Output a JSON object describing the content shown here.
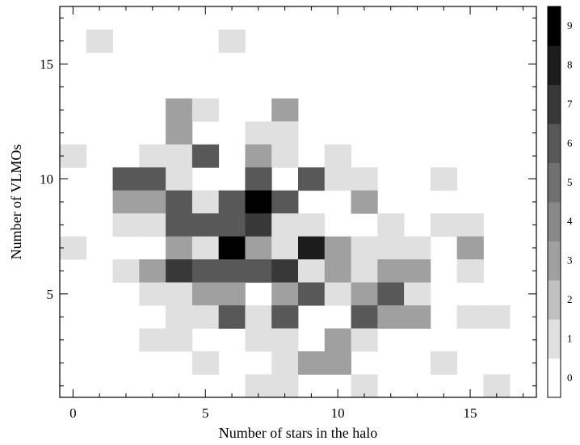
{
  "chart_data": {
    "type": "heatmap",
    "title": "",
    "xlabel": "Number of stars in the halo",
    "ylabel": "Number of VLMOs",
    "xlim": [
      -0.5,
      17.5
    ],
    "ylim": [
      0.5,
      17.5
    ],
    "xticks": [
      0,
      5,
      10,
      15
    ],
    "yticks": [
      5,
      10,
      15
    ],
    "colorbar": {
      "min": 0,
      "max": 10,
      "ticks": [
        0,
        1,
        2,
        3,
        4,
        5,
        6,
        7,
        8,
        9
      ],
      "colors": [
        "#ffffff",
        "#e0e0e0",
        "#c0c0c0",
        "#a0a0a0",
        "#888888",
        "#707070",
        "#585858",
        "#383838",
        "#1c1c1c",
        "#000000"
      ]
    },
    "x": [
      0,
      1,
      2,
      3,
      4,
      5,
      6,
      7,
      8,
      9,
      10,
      11,
      12,
      13,
      14,
      15,
      16,
      17
    ],
    "y": [
      1,
      2,
      3,
      4,
      5,
      6,
      7,
      8,
      9,
      10,
      11,
      12,
      13,
      14,
      15,
      16,
      17
    ],
    "cells": [
      [
        1,
        16,
        1
      ],
      [
        6,
        16,
        1
      ],
      [
        4,
        13,
        3
      ],
      [
        5,
        13,
        1
      ],
      [
        8,
        13,
        3
      ],
      [
        4,
        12,
        3
      ],
      [
        7,
        12,
        1
      ],
      [
        8,
        12,
        1
      ],
      [
        0,
        11,
        1
      ],
      [
        3,
        11,
        1
      ],
      [
        4,
        11,
        1
      ],
      [
        5,
        11,
        6
      ],
      [
        7,
        11,
        3
      ],
      [
        8,
        11,
        1
      ],
      [
        10,
        11,
        1
      ],
      [
        2,
        10,
        6
      ],
      [
        3,
        10,
        6
      ],
      [
        4,
        10,
        1
      ],
      [
        7,
        10,
        6
      ],
      [
        9,
        10,
        6
      ],
      [
        10,
        10,
        1
      ],
      [
        11,
        10,
        1
      ],
      [
        14,
        10,
        1
      ],
      [
        2,
        9,
        3
      ],
      [
        3,
        9,
        3
      ],
      [
        4,
        9,
        6
      ],
      [
        5,
        9,
        1
      ],
      [
        6,
        9,
        6
      ],
      [
        7,
        9,
        9
      ],
      [
        8,
        9,
        6
      ],
      [
        11,
        9,
        3
      ],
      [
        2,
        8,
        1
      ],
      [
        3,
        8,
        1
      ],
      [
        4,
        8,
        6
      ],
      [
        5,
        8,
        6
      ],
      [
        6,
        8,
        6
      ],
      [
        7,
        8,
        7
      ],
      [
        8,
        8,
        1
      ],
      [
        9,
        8,
        1
      ],
      [
        12,
        8,
        1
      ],
      [
        14,
        8,
        1
      ],
      [
        15,
        8,
        1
      ],
      [
        0,
        7,
        1
      ],
      [
        4,
        7,
        3
      ],
      [
        5,
        7,
        1
      ],
      [
        6,
        7,
        9
      ],
      [
        7,
        7,
        3
      ],
      [
        8,
        7,
        1
      ],
      [
        9,
        7,
        8
      ],
      [
        10,
        7,
        3
      ],
      [
        11,
        7,
        1
      ],
      [
        12,
        7,
        1
      ],
      [
        13,
        7,
        1
      ],
      [
        15,
        7,
        3
      ],
      [
        2,
        6,
        1
      ],
      [
        3,
        6,
        3
      ],
      [
        4,
        6,
        7
      ],
      [
        5,
        6,
        6
      ],
      [
        6,
        6,
        6
      ],
      [
        7,
        6,
        6
      ],
      [
        8,
        6,
        7
      ],
      [
        9,
        6,
        1
      ],
      [
        10,
        6,
        3
      ],
      [
        11,
        6,
        1
      ],
      [
        12,
        6,
        3
      ],
      [
        13,
        6,
        3
      ],
      [
        15,
        6,
        1
      ],
      [
        3,
        5,
        1
      ],
      [
        4,
        5,
        1
      ],
      [
        5,
        5,
        3
      ],
      [
        6,
        5,
        3
      ],
      [
        8,
        5,
        3
      ],
      [
        9,
        5,
        6
      ],
      [
        10,
        5,
        1
      ],
      [
        11,
        5,
        3
      ],
      [
        12,
        5,
        6
      ],
      [
        13,
        5,
        1
      ],
      [
        4,
        4,
        1
      ],
      [
        5,
        4,
        1
      ],
      [
        6,
        4,
        6
      ],
      [
        7,
        4,
        1
      ],
      [
        8,
        4,
        6
      ],
      [
        11,
        4,
        6
      ],
      [
        12,
        4,
        3
      ],
      [
        13,
        4,
        3
      ],
      [
        15,
        4,
        1
      ],
      [
        16,
        4,
        1
      ],
      [
        3,
        3,
        1
      ],
      [
        4,
        3,
        1
      ],
      [
        7,
        3,
        1
      ],
      [
        8,
        3,
        1
      ],
      [
        10,
        3,
        3
      ],
      [
        11,
        3,
        1
      ],
      [
        5,
        2,
        1
      ],
      [
        8,
        2,
        1
      ],
      [
        9,
        2,
        3
      ],
      [
        10,
        2,
        3
      ],
      [
        14,
        2,
        1
      ],
      [
        7,
        1,
        1
      ],
      [
        8,
        1,
        1
      ],
      [
        11,
        1,
        1
      ],
      [
        16,
        1,
        1
      ]
    ]
  }
}
